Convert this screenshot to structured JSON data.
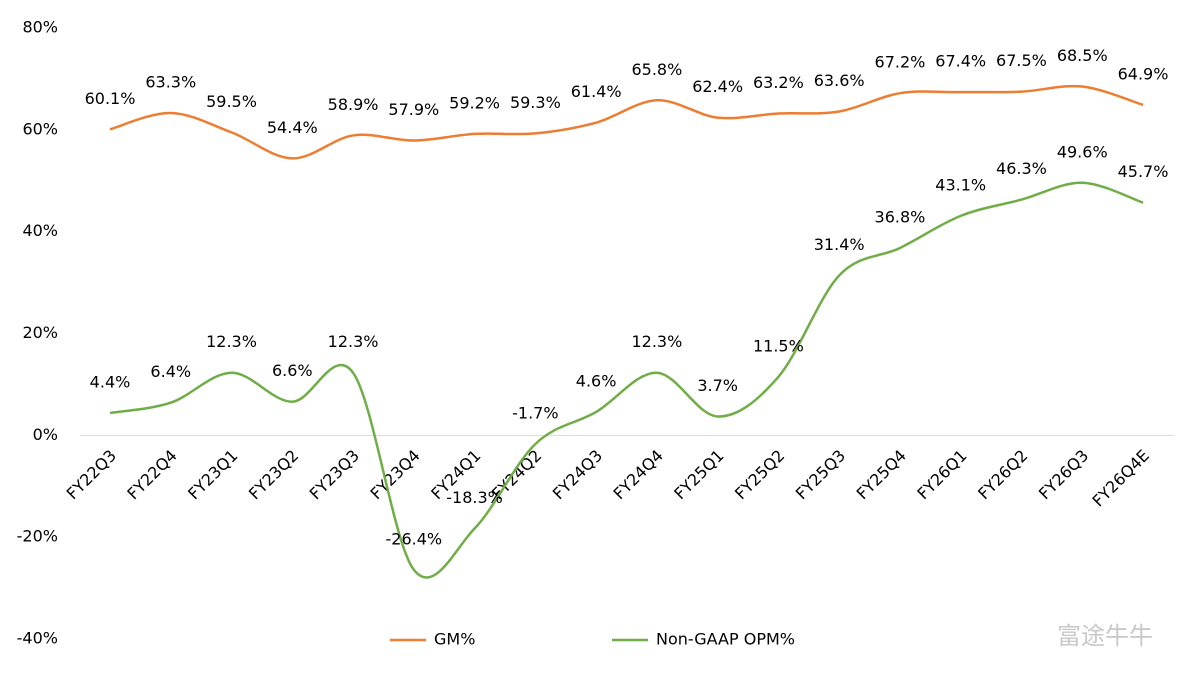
{
  "chart_data": {
    "type": "line",
    "categories": [
      "FY22Q3",
      "FY22Q4",
      "FY23Q1",
      "FY23Q2",
      "FY23Q3",
      "FY23Q4",
      "FY24Q1",
      "FY24Q2",
      "FY24Q3",
      "FY24Q4",
      "FY25Q1",
      "FY25Q2",
      "FY25Q3",
      "FY25Q4",
      "FY26Q1",
      "FY26Q2",
      "FY26Q3",
      "FY26Q4E"
    ],
    "series": [
      {
        "name": "GM%",
        "color": "#ed7d31",
        "values": [
          60.1,
          63.3,
          59.5,
          54.4,
          58.9,
          57.9,
          59.2,
          59.3,
          61.4,
          65.8,
          62.4,
          63.2,
          63.6,
          67.2,
          67.4,
          67.5,
          68.5,
          64.9
        ],
        "value_labels": [
          "60.1%",
          "63.3%",
          "59.5%",
          "54.4%",
          "58.9%",
          "57.9%",
          "59.2%",
          "59.3%",
          "61.4%",
          "65.8%",
          "62.4%",
          "63.2%",
          "63.6%",
          "67.2%",
          "67.4%",
          "67.5%",
          "68.5%",
          "64.9%"
        ]
      },
      {
        "name": "Non-GAAP OPM%",
        "color": "#70ad47",
        "values": [
          4.4,
          6.4,
          12.3,
          6.6,
          12.3,
          -26.4,
          -18.3,
          -1.7,
          4.6,
          12.3,
          3.7,
          11.5,
          31.4,
          36.8,
          43.1,
          46.3,
          49.6,
          45.7
        ],
        "value_labels": [
          "4.4%",
          "6.4%",
          "12.3%",
          "6.6%",
          "12.3%",
          "-26.4%",
          "-18.3%",
          "-1.7%",
          "4.6%",
          "12.3%",
          "3.7%",
          "11.5%",
          "31.4%",
          "36.8%",
          "43.1%",
          "46.3%",
          "49.6%",
          "45.7%"
        ]
      }
    ],
    "ylim": [
      -40,
      80
    ],
    "yticks": [
      {
        "value": -40,
        "label": "-40%"
      },
      {
        "value": -20,
        "label": "-20%"
      },
      {
        "value": 0,
        "label": "0%"
      },
      {
        "value": 20,
        "label": "20%"
      },
      {
        "value": 40,
        "label": "40%"
      },
      {
        "value": 60,
        "label": "60%"
      },
      {
        "value": 80,
        "label": "80%"
      }
    ],
    "smooth": true,
    "legend": "bottom",
    "watermark": "富途牛牛"
  }
}
